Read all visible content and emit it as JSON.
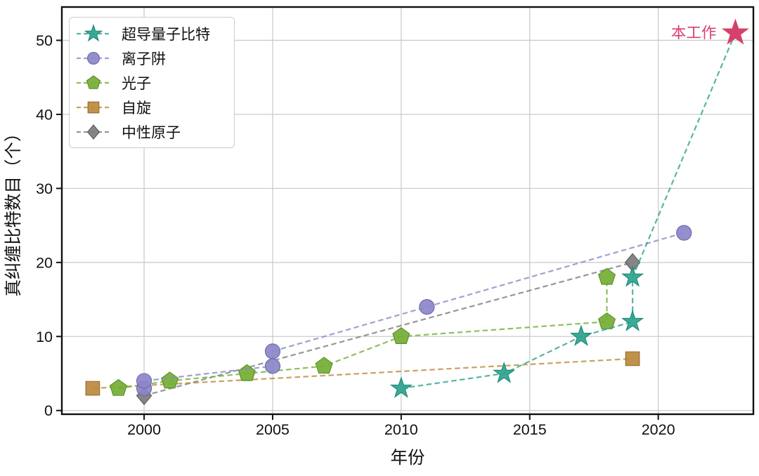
{
  "chart_data": {
    "type": "scatter",
    "title": "",
    "xlabel": "年份",
    "ylabel": "真纠缠比特数目（个）",
    "xlim": [
      1996.8,
      2023.7
    ],
    "ylim": [
      -0.5,
      54.5
    ],
    "xticks": [
      2000,
      2005,
      2010,
      2015,
      2020
    ],
    "yticks": [
      0,
      10,
      20,
      30,
      40,
      50
    ],
    "grid": true,
    "legend_position": "upper-left",
    "series": [
      {
        "name": "超导量子比特",
        "marker": "star",
        "color": "#2EA38D",
        "edge": "#1E8C77",
        "last_point_is_annotation": true,
        "points": [
          [
            2010,
            3
          ],
          [
            2014,
            5
          ],
          [
            2017,
            10
          ],
          [
            2019,
            12
          ],
          [
            2019,
            18
          ],
          [
            2023,
            51
          ]
        ]
      },
      {
        "name": "离子阱",
        "marker": "circle",
        "color": "#8C87C9",
        "edge": "#6F6AAD",
        "points": [
          [
            2000,
            3
          ],
          [
            2000,
            4
          ],
          [
            2005,
            6
          ],
          [
            2005,
            8
          ],
          [
            2011,
            14
          ],
          [
            2021,
            24
          ]
        ]
      },
      {
        "name": "光子",
        "marker": "pentagon",
        "color": "#74AE34",
        "edge": "#5C9428",
        "points": [
          [
            1999,
            3
          ],
          [
            2001,
            4
          ],
          [
            2004,
            5
          ],
          [
            2007,
            6
          ],
          [
            2010,
            10
          ],
          [
            2018,
            12
          ],
          [
            2018,
            18
          ]
        ]
      },
      {
        "name": "自旋",
        "marker": "square",
        "color": "#BB893C",
        "edge": "#99702F",
        "points": [
          [
            1998,
            3
          ],
          [
            2019,
            7
          ]
        ]
      },
      {
        "name": "中性原子",
        "marker": "diamond",
        "color": "#7C7C7C",
        "edge": "#5E5E5E",
        "points": [
          [
            2000,
            2
          ],
          [
            2019,
            20
          ]
        ]
      }
    ],
    "annotation": {
      "label": "本工作",
      "x": 2023,
      "y": 51,
      "marker": "star",
      "color": "#D7406C"
    }
  },
  "colors": {
    "grid": "#cccccc",
    "axis": "#111111",
    "text": "#111111",
    "background": "#ffffff"
  }
}
